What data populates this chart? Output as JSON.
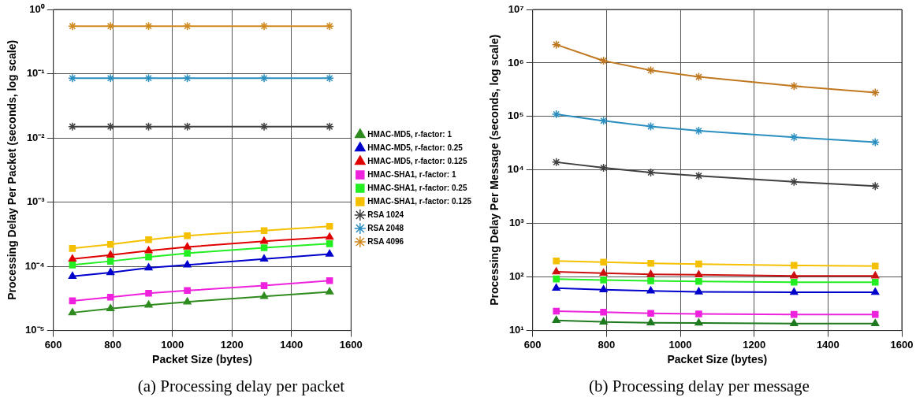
{
  "chart_data": [
    {
      "type": "line",
      "xlabel": "Packet Size (bytes)",
      "ylabel": "Processing Delay Per Packet (seconds, log scale)",
      "annotations": [
        "(a) Processing delay per packet"
      ],
      "log": "y",
      "grid": true,
      "legend": "right",
      "line_style": "solid",
      "x": [
        664,
        792,
        920,
        1050,
        1308,
        1528
      ],
      "xlim": [
        600,
        1600
      ],
      "xticks": [
        600,
        800,
        1000,
        1200,
        1400,
        1600
      ],
      "ylim": [
        1e-05,
        1
      ],
      "yticks": [
        {
          "value": 1e-05,
          "label": "10⁻⁵"
        },
        {
          "value": 0.0001,
          "label": "10⁻⁴"
        },
        {
          "value": 0.001,
          "label": "10⁻³"
        },
        {
          "value": 0.01,
          "label": "10⁻²"
        },
        {
          "value": 0.1,
          "label": "10⁻¹"
        },
        {
          "value": 1,
          "label": "10⁰"
        }
      ],
      "series": [
        {
          "name": "HMAC-MD5, r-factor: 1",
          "color": "#2e8b1e",
          "marker": "triangle",
          "values": [
            1.9e-05,
            2.2e-05,
            2.5e-05,
            2.8e-05,
            3.4e-05,
            4e-05
          ]
        },
        {
          "name": "HMAC-MD5, r-factor: 0.25",
          "color": "#0000cc",
          "marker": "triangle",
          "values": [
            7e-05,
            8e-05,
            9.5e-05,
            0.000105,
            0.00013,
            0.000155
          ]
        },
        {
          "name": "HMAC-MD5, r-factor: 0.125",
          "color": "#e00000",
          "marker": "triangle",
          "values": [
            0.00013,
            0.00015,
            0.000175,
            0.0002,
            0.000245,
            0.000285
          ]
        },
        {
          "name": "HMAC-SHA1, r-factor: 1",
          "color": "#ee22dd",
          "marker": "square",
          "values": [
            2.9e-05,
            3.3e-05,
            3.8e-05,
            4.2e-05,
            5e-05,
            6e-05
          ]
        },
        {
          "name": "HMAC-SHA1, r-factor: 0.25",
          "color": "#22ee22",
          "marker": "square",
          "values": [
            0.000105,
            0.00012,
            0.00014,
            0.00016,
            0.000195,
            0.000225
          ]
        },
        {
          "name": "HMAC-SHA1, r-factor: 0.125",
          "color": "#f5c000",
          "marker": "square",
          "values": [
            0.00019,
            0.00022,
            0.00026,
            0.0003,
            0.00036,
            0.00042
          ]
        },
        {
          "name": "RSA 1024",
          "color": "#404040",
          "marker": "cross",
          "values": [
            0.015,
            0.015,
            0.015,
            0.015,
            0.015,
            0.015
          ]
        },
        {
          "name": "RSA 2048",
          "color": "#2a8fc0",
          "marker": "cross",
          "values": [
            0.085,
            0.085,
            0.085,
            0.085,
            0.085,
            0.085
          ]
        },
        {
          "name": "RSA 4096",
          "color": "#d08a20",
          "marker": "cross",
          "values": [
            0.55,
            0.55,
            0.55,
            0.55,
            0.55,
            0.55
          ]
        }
      ]
    },
    {
      "type": "line",
      "xlabel": "Packet Size (bytes)",
      "ylabel": "Processing Delay Per Message (seconds, log scale)",
      "annotations": [
        "(b) Processing delay per message"
      ],
      "log": "y",
      "grid": true,
      "line_style": "solid",
      "x": [
        664,
        792,
        920,
        1050,
        1308,
        1528
      ],
      "xlim": [
        600,
        1600
      ],
      "xticks": [
        600,
        800,
        1000,
        1200,
        1400,
        1600
      ],
      "ylim": [
        10,
        10000000
      ],
      "yticks": [
        {
          "value": 10,
          "label": "10¹"
        },
        {
          "value": 100,
          "label": "10²"
        },
        {
          "value": 1000,
          "label": "10³"
        },
        {
          "value": 10000,
          "label": "10⁴"
        },
        {
          "value": 100000,
          "label": "10⁵"
        },
        {
          "value": 1000000,
          "label": "10⁶"
        },
        {
          "value": 10000000,
          "label": "10⁷"
        }
      ],
      "series": [
        {
          "color": "#1e7a1e",
          "marker": "triangle",
          "values": [
            15.5,
            14.5,
            14,
            13.8,
            13.5,
            13.5
          ]
        },
        {
          "color": "#0000cc",
          "marker": "triangle",
          "values": [
            62,
            58,
            55,
            53,
            52,
            52
          ]
        },
        {
          "color": "#cc1010",
          "marker": "triangle",
          "values": [
            125,
            118,
            112,
            110,
            105,
            105
          ]
        },
        {
          "color": "#ee22dd",
          "marker": "square",
          "values": [
            23,
            22,
            21,
            20.5,
            20,
            20
          ]
        },
        {
          "color": "#22ee22",
          "marker": "square",
          "values": [
            92,
            88,
            85,
            83,
            80,
            80
          ]
        },
        {
          "color": "#f5c000",
          "marker": "square",
          "values": [
            200,
            190,
            180,
            175,
            165,
            160
          ]
        },
        {
          "color": "#404040",
          "marker": "cross",
          "values": [
            14000,
            11000,
            9000,
            7800,
            6000,
            5000
          ]
        },
        {
          "color": "#2a8fc0",
          "marker": "cross",
          "values": [
            110000,
            83000,
            65000,
            54000,
            41000,
            33000
          ]
        },
        {
          "color": "#c07820",
          "marker": "cross",
          "values": [
            2200000,
            1100000,
            730000,
            550000,
            370000,
            280000
          ]
        }
      ]
    }
  ]
}
